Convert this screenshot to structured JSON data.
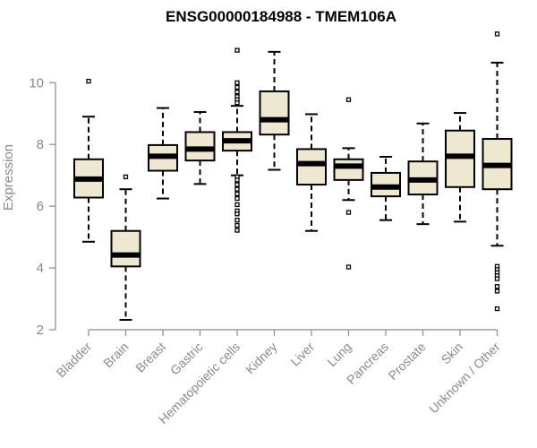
{
  "chart_data": {
    "type": "box",
    "title": "ENSG00000184988 - TMEM106A",
    "xlabel": "",
    "ylabel": "Expression",
    "ylim": [
      2,
      11.75
    ],
    "yticks": [
      2,
      4,
      6,
      8,
      10
    ],
    "grid": false,
    "box_fill": "#efe8d0",
    "axis_color": "#8a8a8a",
    "categories": [
      "Bladder",
      "Brain",
      "Breast",
      "Gastric",
      "Hematopoietic cells",
      "Kidney",
      "Liver",
      "Lung",
      "Pancreas",
      "Prostate",
      "Skin",
      "Unknown / Other"
    ],
    "boxes": [
      {
        "label": "Bladder",
        "whisker_low": 4.85,
        "q1": 6.28,
        "median": 6.88,
        "q3": 7.52,
        "whisker_high": 8.9,
        "outliers": [
          10.05
        ]
      },
      {
        "label": "Brain",
        "whisker_low": 2.32,
        "q1": 4.05,
        "median": 4.42,
        "q3": 5.2,
        "whisker_high": 6.55,
        "outliers": [
          6.95
        ]
      },
      {
        "label": "Breast",
        "whisker_low": 6.25,
        "q1": 7.15,
        "median": 7.62,
        "q3": 7.98,
        "whisker_high": 9.18,
        "outliers": []
      },
      {
        "label": "Gastric",
        "whisker_low": 6.72,
        "q1": 7.48,
        "median": 7.85,
        "q3": 8.4,
        "whisker_high": 9.05,
        "outliers": []
      },
      {
        "label": "Hematopoietic cells",
        "whisker_low": 7.0,
        "q1": 7.8,
        "median": 8.12,
        "q3": 8.4,
        "whisker_high": 9.25,
        "outliers": [
          11.05,
          10.0,
          9.85,
          9.7,
          9.55,
          9.45,
          9.35,
          6.95,
          6.85,
          6.7,
          6.55,
          6.4,
          6.25,
          6.05,
          5.85,
          5.75,
          5.55,
          5.38,
          5.22
        ]
      },
      {
        "label": "Kidney",
        "whisker_low": 7.18,
        "q1": 8.32,
        "median": 8.8,
        "q3": 9.72,
        "whisker_high": 11.0,
        "outliers": []
      },
      {
        "label": "Liver",
        "whisker_low": 5.2,
        "q1": 6.7,
        "median": 7.38,
        "q3": 7.85,
        "whisker_high": 8.98,
        "outliers": []
      },
      {
        "label": "Lung",
        "whisker_low": 6.2,
        "q1": 6.85,
        "median": 7.3,
        "q3": 7.52,
        "whisker_high": 7.88,
        "outliers": [
          9.45,
          5.8,
          4.03
        ]
      },
      {
        "label": "Pancreas",
        "whisker_low": 5.55,
        "q1": 6.32,
        "median": 6.62,
        "q3": 7.08,
        "whisker_high": 7.6,
        "outliers": []
      },
      {
        "label": "Prostate",
        "whisker_low": 5.42,
        "q1": 6.38,
        "median": 6.85,
        "q3": 7.45,
        "whisker_high": 8.68,
        "outliers": []
      },
      {
        "label": "Skin",
        "whisker_low": 5.5,
        "q1": 6.62,
        "median": 7.62,
        "q3": 8.45,
        "whisker_high": 9.02,
        "outliers": []
      },
      {
        "label": "Unknown / Other",
        "whisker_low": 4.72,
        "q1": 6.55,
        "median": 7.32,
        "q3": 8.18,
        "whisker_high": 10.65,
        "outliers": [
          11.58,
          4.05,
          3.95,
          3.85,
          3.75,
          3.65,
          3.4,
          3.25,
          2.68
        ]
      }
    ]
  }
}
